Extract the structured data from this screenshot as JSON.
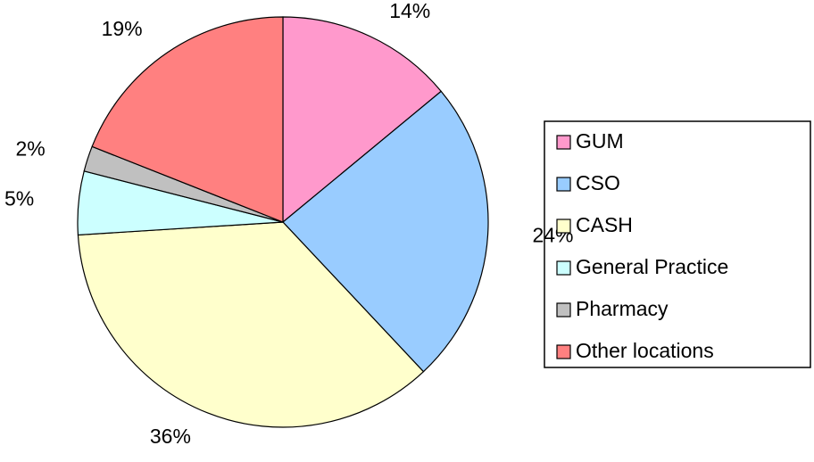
{
  "chart_data": {
    "type": "pie",
    "categories": [
      "GUM",
      "CSO",
      "CASH",
      "General Practice",
      "Pharmacy",
      "Other locations"
    ],
    "values": [
      14,
      24,
      36,
      5,
      2,
      19
    ],
    "value_labels": [
      "14%",
      "24%",
      "36%",
      "5%",
      "2%",
      "19%"
    ],
    "colors": [
      "#ff99cc",
      "#99ccff",
      "#ffffcc",
      "#ccffff",
      "#c0c0c0",
      "#ff8080"
    ],
    "legend": "right"
  }
}
